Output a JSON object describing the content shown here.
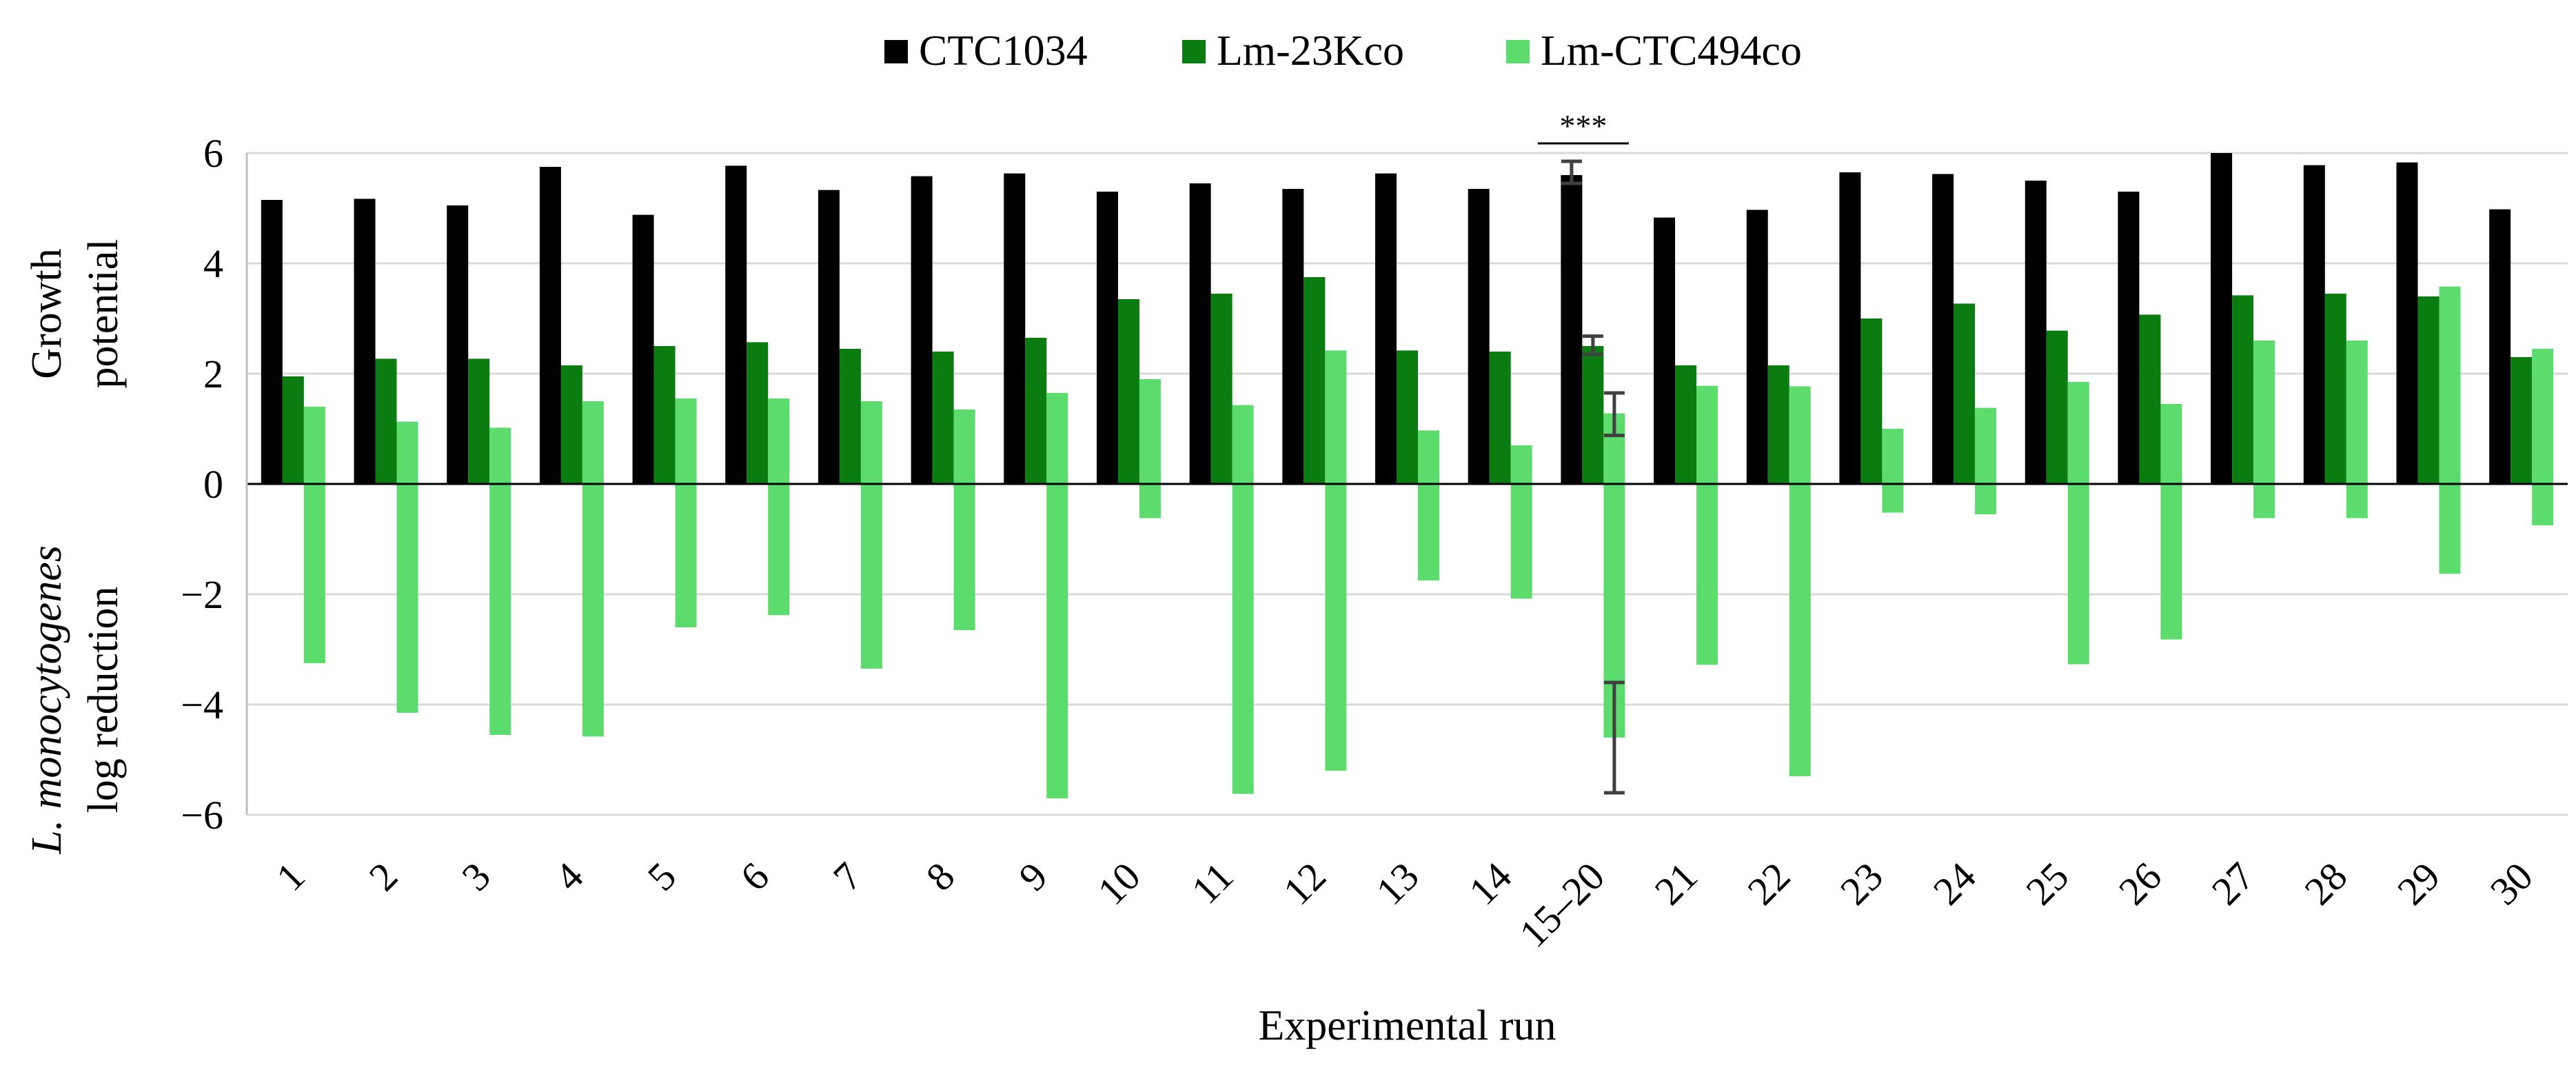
{
  "chart_data": {
    "type": "bar",
    "xlabel": "Experimental run",
    "ylabel_lines": [
      {
        "parts": [
          {
            "text": "Growth",
            "italic": false
          }
        ]
      },
      {
        "parts": [
          {
            "text": "potential",
            "italic": false
          }
        ]
      }
    ],
    "ylabel_lower_lines": [
      {
        "parts": [
          {
            "text": "L. monocytogenes",
            "italic": true
          }
        ]
      },
      {
        "parts": [
          {
            "text": "log reduction",
            "italic": false
          }
        ]
      }
    ],
    "ylim": [
      -6,
      6
    ],
    "yticks": [
      6,
      4,
      2,
      0,
      -2,
      -4,
      -6
    ],
    "grid": true,
    "legend_position": "top-center",
    "categories": [
      "1",
      "2",
      "3",
      "4",
      "5",
      "6",
      "7",
      "8",
      "9",
      "10",
      "11",
      "12",
      "13",
      "14",
      "15–20",
      "21",
      "22",
      "23",
      "24",
      "25",
      "26",
      "27",
      "28",
      "29",
      "30"
    ],
    "series": [
      {
        "name": "CTC1034",
        "color": "#000000",
        "values": [
          5.15,
          5.17,
          5.05,
          5.75,
          4.88,
          5.77,
          5.33,
          5.58,
          5.63,
          5.3,
          5.45,
          5.35,
          5.63,
          5.35,
          5.6,
          4.83,
          4.97,
          5.65,
          5.62,
          5.5,
          5.3,
          6.0,
          5.78,
          5.83,
          4.98
        ]
      },
      {
        "name": "Lm-23Kco",
        "color": "#0a7c10",
        "values": [
          1.95,
          2.27,
          2.27,
          2.15,
          2.5,
          2.57,
          2.45,
          2.4,
          2.65,
          3.35,
          3.45,
          3.75,
          2.42,
          2.4,
          2.5,
          2.15,
          2.15,
          3.0,
          3.27,
          2.78,
          3.07,
          3.42,
          3.45,
          3.4,
          2.3
        ]
      },
      {
        "name": "Lm-CTC494co",
        "color": "#5ddc6e",
        "values": [
          1.4,
          1.13,
          1.02,
          1.5,
          1.55,
          1.55,
          1.5,
          1.35,
          1.65,
          1.9,
          1.43,
          2.42,
          0.97,
          0.7,
          1.28,
          1.78,
          1.77,
          1.0,
          1.38,
          1.85,
          1.45,
          2.6,
          2.6,
          3.58,
          2.45
        ]
      },
      {
        "name": "Lm-CTC494co",
        "color": "#5ddc6e",
        "values": [
          -3.25,
          -4.15,
          -4.55,
          -4.58,
          -2.6,
          -2.38,
          -3.35,
          -2.65,
          -5.7,
          -0.62,
          -5.62,
          -5.2,
          -1.75,
          -2.08,
          -4.6,
          -3.28,
          -5.3,
          -0.52,
          -0.55,
          -3.27,
          -2.82,
          -0.62,
          -0.62,
          -1.63,
          -0.75
        ]
      }
    ],
    "error_bars": [
      {
        "category": "15–20",
        "series": "CTC1034",
        "low": 5.45,
        "high": 5.85
      },
      {
        "category": "15–20",
        "series": "Lm-23Kco",
        "low": 2.35,
        "high": 2.68
      },
      {
        "category": "15–20",
        "series": "Lm-CTC494co",
        "low": 0.88,
        "high": 1.65
      },
      {
        "category": "15–20",
        "series": "Lm-CTC494co",
        "low": -5.6,
        "high": -3.6
      }
    ],
    "annotations": [
      {
        "text": "***",
        "category": "15–20",
        "y": 6.3
      }
    ]
  }
}
